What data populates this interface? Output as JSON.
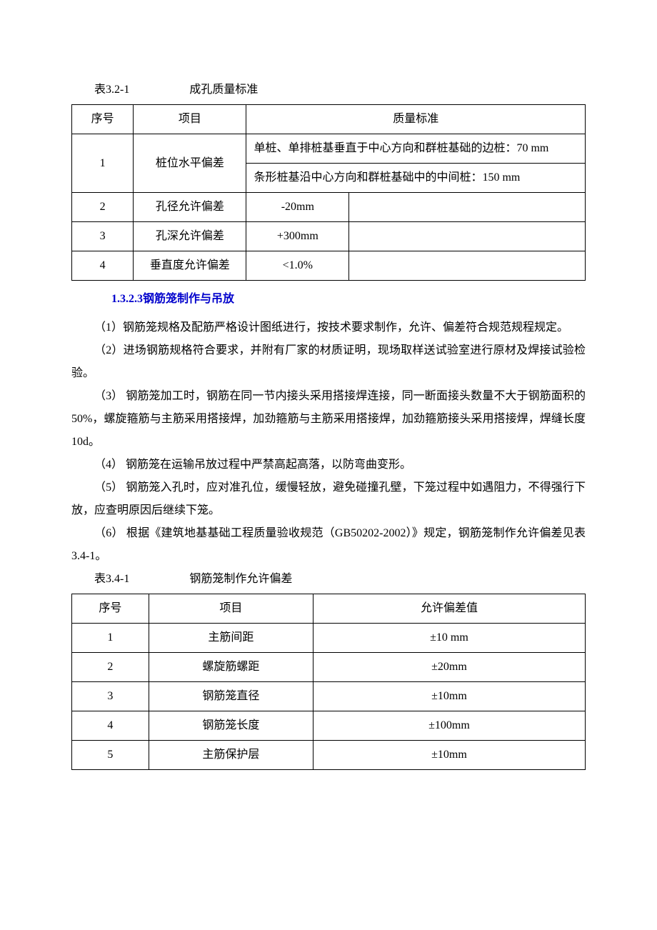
{
  "table1": {
    "caption_num": "表3.2-1",
    "caption_title": "成孔质量标准",
    "headers": [
      "序号",
      "项目",
      "质量标准"
    ],
    "rows": [
      {
        "no": "1",
        "item": "桩位水平偏差",
        "std_a": "单桩、单排桩基垂直于中心方向和群桩基础的边桩：70 mm",
        "std_b": "条形桩基沿中心方向和群桩基础中的中间桩：150 mm"
      },
      {
        "no": "2",
        "item": "孔径允许偏差",
        "std": "-20mm"
      },
      {
        "no": "3",
        "item": "孔深允许偏差",
        "std": "+300mm"
      },
      {
        "no": "4",
        "item": "垂直度允许偏差",
        "std": "<1.0%"
      }
    ]
  },
  "heading": "1.3.2.3钢筋笼制作与吊放",
  "paragraphs": [
    "（1）钢筋笼规格及配筋严格设计图纸进行，按技术要求制作，允许、偏差符合规范规程规定。",
    "（2）进场钢筋规格符合要求，并附有厂家的材质证明，现场取样送试验室进行原材及焊接试验检验。",
    "（3） 钢筋笼加工时，钢筋在同一节内接头采用搭接焊连接，同一断面接头数量不大于钢筋面积的50%，螺旋箍筋与主筋采用搭接焊，加劲箍筋与主筋采用搭接焊，加劲箍筋接头采用搭接焊，焊缝长度10d。",
    "（4） 钢筋笼在运输吊放过程中严禁高起高落，以防弯曲变形。",
    "（5） 钢筋笼入孔时，应对准孔位，缓慢轻放，避免碰撞孔壁，下笼过程中如遇阻力，不得强行下放，应查明原因后继续下笼。",
    "（6） 根据《建筑地基基础工程质量验收规范（GB50202-2002）》规定，钢筋笼制作允许偏差见表3.4-1。"
  ],
  "table2": {
    "caption_num": "表3.4-1",
    "caption_title": "钢筋笼制作允许偏差",
    "headers": [
      "序号",
      "项目",
      "允许偏差值"
    ],
    "rows": [
      {
        "no": "1",
        "item": "主筋间距",
        "val": "±10 mm"
      },
      {
        "no": "2",
        "item": "螺旋筋螺距",
        "val": "±20mm"
      },
      {
        "no": "3",
        "item": "钢筋笼直径",
        "val": "±10mm"
      },
      {
        "no": "4",
        "item": "钢筋笼长度",
        "val": "±100mm"
      },
      {
        "no": "5",
        "item": "主筋保护层",
        "val": "±10mm"
      }
    ]
  },
  "colors": {
    "text": "#000000",
    "heading": "#0000cc",
    "border": "#000000",
    "background": "#ffffff"
  }
}
